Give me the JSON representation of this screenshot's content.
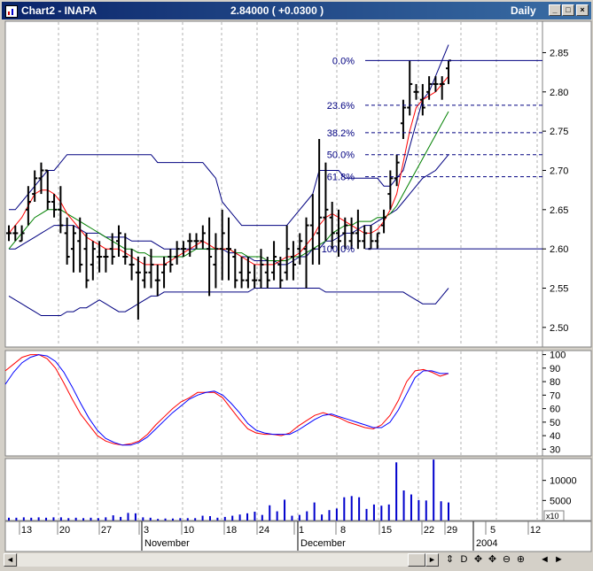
{
  "window": {
    "title": "Chart2 - INAPA",
    "price_text": "2.84000 ( +0.0300 )",
    "period": "Daily",
    "controls": {
      "minimize": "_",
      "maximize": "□",
      "close": "×"
    }
  },
  "chart_data": [
    {
      "type": "bar",
      "panel": "price",
      "description_kind": "OHLC bars with Bollinger Bands, moving averages and Fibonacci retracement",
      "y_ticks": [
        "2.85",
        "2.80",
        "2.75",
        "2.70",
        "2.65",
        "2.60",
        "2.55",
        "2.50"
      ],
      "ylim": [
        2.475,
        2.89
      ],
      "days": [
        {
          "o": 2.62,
          "h": 2.63,
          "l": 2.61,
          "c": 2.62
        },
        {
          "o": 2.62,
          "h": 2.63,
          "l": 2.61,
          "c": 2.62
        },
        {
          "o": 2.61,
          "h": 2.63,
          "l": 2.61,
          "c": 2.62
        },
        {
          "o": 2.65,
          "h": 2.68,
          "l": 2.63,
          "c": 2.66
        },
        {
          "o": 2.67,
          "h": 2.7,
          "l": 2.66,
          "c": 2.69
        },
        {
          "o": 2.69,
          "h": 2.71,
          "l": 2.67,
          "c": 2.7
        },
        {
          "o": 2.7,
          "h": 2.7,
          "l": 2.65,
          "c": 2.66
        },
        {
          "o": 2.66,
          "h": 2.67,
          "l": 2.64,
          "c": 2.65
        },
        {
          "o": 2.65,
          "h": 2.68,
          "l": 2.62,
          "c": 2.63
        },
        {
          "o": 2.62,
          "h": 2.64,
          "l": 2.58,
          "c": 2.59
        },
        {
          "o": 2.6,
          "h": 2.63,
          "l": 2.57,
          "c": 2.62
        },
        {
          "o": 2.61,
          "h": 2.64,
          "l": 2.57,
          "c": 2.58
        },
        {
          "o": 2.6,
          "h": 2.62,
          "l": 2.55,
          "c": 2.56
        },
        {
          "o": 2.58,
          "h": 2.61,
          "l": 2.56,
          "c": 2.6
        },
        {
          "o": 2.59,
          "h": 2.61,
          "l": 2.57,
          "c": 2.59
        },
        {
          "o": 2.59,
          "h": 2.6,
          "l": 2.57,
          "c": 2.59
        },
        {
          "o": 2.6,
          "h": 2.62,
          "l": 2.58,
          "c": 2.59
        },
        {
          "o": 2.61,
          "h": 2.63,
          "l": 2.59,
          "c": 2.62
        },
        {
          "o": 2.59,
          "h": 2.62,
          "l": 2.58,
          "c": 2.59
        },
        {
          "o": 2.58,
          "h": 2.6,
          "l": 2.56,
          "c": 2.58
        },
        {
          "o": 2.57,
          "h": 2.59,
          "l": 2.51,
          "c": 2.57
        },
        {
          "o": 2.56,
          "h": 2.59,
          "l": 2.55,
          "c": 2.57
        },
        {
          "o": 2.57,
          "h": 2.6,
          "l": 2.55,
          "c": 2.58
        },
        {
          "o": 2.56,
          "h": 2.58,
          "l": 2.54,
          "c": 2.56
        },
        {
          "o": 2.57,
          "h": 2.59,
          "l": 2.55,
          "c": 2.58
        },
        {
          "o": 2.59,
          "h": 2.6,
          "l": 2.57,
          "c": 2.58
        },
        {
          "o": 2.59,
          "h": 2.61,
          "l": 2.58,
          "c": 2.6
        },
        {
          "o": 2.6,
          "h": 2.61,
          "l": 2.59,
          "c": 2.6
        },
        {
          "o": 2.61,
          "h": 2.62,
          "l": 2.59,
          "c": 2.61
        },
        {
          "o": 2.61,
          "h": 2.62,
          "l": 2.6,
          "c": 2.61
        },
        {
          "o": 2.61,
          "h": 2.63,
          "l": 2.6,
          "c": 2.62
        },
        {
          "o": 2.6,
          "h": 2.64,
          "l": 2.54,
          "c": 2.59
        },
        {
          "o": 2.58,
          "h": 2.62,
          "l": 2.55,
          "c": 2.6
        },
        {
          "o": 2.6,
          "h": 2.65,
          "l": 2.56,
          "c": 2.62
        },
        {
          "o": 2.6,
          "h": 2.64,
          "l": 2.56,
          "c": 2.6
        },
        {
          "o": 2.59,
          "h": 2.6,
          "l": 2.55,
          "c": 2.56
        },
        {
          "o": 2.57,
          "h": 2.59,
          "l": 2.55,
          "c": 2.56
        },
        {
          "o": 2.56,
          "h": 2.59,
          "l": 2.55,
          "c": 2.57
        },
        {
          "o": 2.56,
          "h": 2.58,
          "l": 2.55,
          "c": 2.56
        },
        {
          "o": 2.56,
          "h": 2.6,
          "l": 2.55,
          "c": 2.58
        },
        {
          "o": 2.57,
          "h": 2.59,
          "l": 2.55,
          "c": 2.56
        },
        {
          "o": 2.57,
          "h": 2.61,
          "l": 2.56,
          "c": 2.59
        },
        {
          "o": 2.58,
          "h": 2.59,
          "l": 2.55,
          "c": 2.56
        },
        {
          "o": 2.57,
          "h": 2.63,
          "l": 2.56,
          "c": 2.6
        },
        {
          "o": 2.59,
          "h": 2.61,
          "l": 2.56,
          "c": 2.58
        },
        {
          "o": 2.6,
          "h": 2.62,
          "l": 2.58,
          "c": 2.61
        },
        {
          "o": 2.6,
          "h": 2.64,
          "l": 2.55,
          "c": 2.63
        },
        {
          "o": 2.63,
          "h": 2.67,
          "l": 2.58,
          "c": 2.6
        },
        {
          "o": 2.62,
          "h": 2.74,
          "l": 2.58,
          "c": 2.64
        },
        {
          "o": 2.64,
          "h": 2.71,
          "l": 2.61,
          "c": 2.65
        },
        {
          "o": 2.64,
          "h": 2.66,
          "l": 2.6,
          "c": 2.62
        },
        {
          "o": 2.62,
          "h": 2.65,
          "l": 2.59,
          "c": 2.61
        },
        {
          "o": 2.62,
          "h": 2.64,
          "l": 2.6,
          "c": 2.63
        },
        {
          "o": 2.61,
          "h": 2.64,
          "l": 2.6,
          "c": 2.62
        },
        {
          "o": 2.62,
          "h": 2.65,
          "l": 2.6,
          "c": 2.61
        },
        {
          "o": 2.61,
          "h": 2.63,
          "l": 2.6,
          "c": 2.62
        },
        {
          "o": 2.6,
          "h": 2.63,
          "l": 2.6,
          "c": 2.61
        },
        {
          "o": 2.61,
          "h": 2.62,
          "l": 2.6,
          "c": 2.62
        },
        {
          "o": 2.63,
          "h": 2.65,
          "l": 2.62,
          "c": 2.64
        },
        {
          "o": 2.67,
          "h": 2.7,
          "l": 2.65,
          "c": 2.69
        },
        {
          "o": 2.69,
          "h": 2.72,
          "l": 2.68,
          "c": 2.71
        },
        {
          "o": 2.76,
          "h": 2.79,
          "l": 2.74,
          "c": 2.78
        },
        {
          "o": 2.78,
          "h": 2.84,
          "l": 2.77,
          "c": 2.81
        },
        {
          "o": 2.8,
          "h": 2.81,
          "l": 2.79,
          "c": 2.8
        },
        {
          "o": 2.79,
          "h": 2.81,
          "l": 2.77,
          "c": 2.78
        },
        {
          "o": 2.8,
          "h": 2.82,
          "l": 2.79,
          "c": 2.81
        },
        {
          "o": 2.81,
          "h": 2.82,
          "l": 2.8,
          "c": 2.81
        },
        {
          "o": 2.81,
          "h": 2.82,
          "l": 2.79,
          "c": 2.81
        },
        {
          "o": 2.83,
          "h": 2.84,
          "l": 2.81,
          "c": 2.84
        }
      ],
      "bollinger_upper": [
        2.65,
        2.65,
        2.66,
        2.67,
        2.68,
        2.69,
        2.7,
        2.7,
        2.71,
        2.72,
        2.72,
        2.72,
        2.72,
        2.72,
        2.72,
        2.72,
        2.72,
        2.72,
        2.72,
        2.72,
        2.72,
        2.72,
        2.72,
        2.71,
        2.71,
        2.71,
        2.71,
        2.71,
        2.71,
        2.71,
        2.71,
        2.7,
        2.69,
        2.66,
        2.65,
        2.64,
        2.63,
        2.63,
        2.63,
        2.63,
        2.63,
        2.63,
        2.63,
        2.63,
        2.64,
        2.65,
        2.66,
        2.67,
        2.7,
        2.7,
        2.7,
        2.7,
        2.69,
        2.69,
        2.69,
        2.69,
        2.69,
        2.69,
        2.68,
        2.68,
        2.69,
        2.7,
        2.73,
        2.76,
        2.79,
        2.8,
        2.82,
        2.84,
        2.86
      ],
      "bollinger_middle": [
        2.6,
        2.6,
        2.605,
        2.61,
        2.615,
        2.62,
        2.625,
        2.63,
        2.63,
        2.63,
        2.63,
        2.625,
        2.62,
        2.62,
        2.62,
        2.615,
        2.615,
        2.615,
        2.615,
        2.61,
        2.61,
        2.61,
        2.61,
        2.605,
        2.6,
        2.6,
        2.6,
        2.6,
        2.6,
        2.6,
        2.6,
        2.6,
        2.6,
        2.6,
        2.595,
        2.595,
        2.59,
        2.59,
        2.585,
        2.585,
        2.585,
        2.585,
        2.58,
        2.58,
        2.585,
        2.59,
        2.59,
        2.6,
        2.6,
        2.61,
        2.61,
        2.615,
        2.62,
        2.62,
        2.625,
        2.63,
        2.63,
        2.635,
        2.64,
        2.645,
        2.65,
        2.66,
        2.67,
        2.68,
        2.69,
        2.695,
        2.7,
        2.71,
        2.72
      ],
      "bollinger_lower": [
        2.54,
        2.535,
        2.53,
        2.525,
        2.52,
        2.515,
        2.515,
        2.515,
        2.515,
        2.52,
        2.52,
        2.525,
        2.525,
        2.53,
        2.535,
        2.53,
        2.525,
        2.52,
        2.52,
        2.525,
        2.53,
        2.535,
        2.54,
        2.54,
        2.545,
        2.545,
        2.545,
        2.545,
        2.545,
        2.545,
        2.545,
        2.545,
        2.545,
        2.545,
        2.545,
        2.545,
        2.545,
        2.545,
        2.55,
        2.55,
        2.55,
        2.55,
        2.55,
        2.55,
        2.55,
        2.55,
        2.55,
        2.55,
        2.55,
        2.545,
        2.545,
        2.545,
        2.545,
        2.545,
        2.545,
        2.545,
        2.545,
        2.545,
        2.545,
        2.545,
        2.545,
        2.545,
        2.54,
        2.535,
        2.53,
        2.53,
        2.53,
        2.54,
        2.55
      ],
      "ma_red": [
        2.62,
        2.63,
        2.64,
        2.655,
        2.67,
        2.675,
        2.675,
        2.67,
        2.66,
        2.645,
        2.635,
        2.625,
        2.615,
        2.61,
        2.605,
        2.6,
        2.6,
        2.6,
        2.595,
        2.59,
        2.585,
        2.58,
        2.58,
        2.58,
        2.58,
        2.585,
        2.59,
        2.595,
        2.6,
        2.605,
        2.61,
        2.605,
        2.6,
        2.6,
        2.6,
        2.595,
        2.59,
        2.585,
        2.58,
        2.58,
        2.58,
        2.58,
        2.585,
        2.59,
        2.59,
        2.595,
        2.605,
        2.615,
        2.63,
        2.64,
        2.645,
        2.64,
        2.635,
        2.63,
        2.625,
        2.62,
        2.62,
        2.625,
        2.635,
        2.65,
        2.67,
        2.71,
        2.75,
        2.78,
        2.79,
        2.795,
        2.8,
        2.81,
        2.82
      ],
      "ma_green": [
        2.6,
        2.61,
        2.62,
        2.63,
        2.64,
        2.645,
        2.65,
        2.65,
        2.65,
        2.645,
        2.64,
        2.635,
        2.63,
        2.625,
        2.62,
        2.615,
        2.61,
        2.605,
        2.6,
        2.6,
        2.595,
        2.595,
        2.59,
        2.59,
        2.59,
        2.59,
        2.59,
        2.59,
        2.595,
        2.6,
        2.6,
        2.6,
        2.6,
        2.6,
        2.6,
        2.595,
        2.595,
        2.59,
        2.59,
        2.59,
        2.585,
        2.585,
        2.585,
        2.585,
        2.59,
        2.59,
        2.595,
        2.6,
        2.605,
        2.61,
        2.62,
        2.625,
        2.63,
        2.63,
        2.635,
        2.635,
        2.635,
        2.64,
        2.64,
        2.645,
        2.655,
        2.67,
        2.685,
        2.7,
        2.715,
        2.73,
        2.745,
        2.76,
        2.775
      ],
      "fibonacci": {
        "high": 2.84,
        "low": 2.6,
        "levels": [
          {
            "label": "0.0%",
            "value": 2.84
          },
          {
            "label": "23.6%",
            "value": 2.783
          },
          {
            "label": "38.2%",
            "value": 2.748
          },
          {
            "label": "50.0%",
            "value": 2.72
          },
          {
            "label": "61.8%",
            "value": 2.692
          },
          {
            "label": "100.0%",
            "value": 2.6
          }
        ]
      },
      "colors": {
        "bars": "#000000",
        "bollinger": "#000080",
        "ma_fast": "#ff0000",
        "ma_slow": "#008000",
        "fibonacci": "#000080",
        "fib_label": "#000080"
      }
    },
    {
      "type": "line",
      "panel": "stochastic",
      "y_ticks": [
        "100",
        "90",
        "80",
        "70",
        "60",
        "50",
        "40",
        "30"
      ],
      "ylim": [
        25,
        103
      ],
      "series": [
        {
          "color": "#ff0000",
          "values": [
            88,
            93,
            98,
            100,
            100,
            97,
            90,
            79,
            67,
            56,
            48,
            40,
            36,
            34,
            33,
            34,
            36,
            41,
            48,
            54,
            60,
            65,
            68,
            72,
            72,
            72,
            68,
            60,
            52,
            45,
            42,
            41,
            41,
            40,
            42,
            47,
            51,
            55,
            57,
            55,
            53,
            50,
            48,
            46,
            45,
            48,
            55,
            66,
            80,
            88,
            89,
            87,
            84,
            86
          ]
        },
        {
          "color": "#0000ff",
          "values": [
            78,
            87,
            94,
            98,
            100,
            99,
            95,
            87,
            76,
            64,
            53,
            44,
            38,
            35,
            33,
            33,
            35,
            39,
            45,
            51,
            57,
            62,
            67,
            70,
            72,
            73,
            70,
            64,
            57,
            49,
            44,
            42,
            41,
            41,
            41,
            44,
            48,
            52,
            55,
            56,
            54,
            52,
            50,
            48,
            46,
            46,
            50,
            59,
            71,
            83,
            88,
            88,
            86,
            86
          ]
        }
      ]
    },
    {
      "type": "bar",
      "panel": "volume",
      "y_ticks": [
        "10000",
        "5000"
      ],
      "multiplier_label": "x10",
      "ylim": [
        0,
        15000
      ],
      "values": [
        700,
        700,
        800,
        700,
        800,
        700,
        800,
        800,
        600,
        700,
        600,
        700,
        600,
        800,
        1300,
        900,
        1900,
        1800,
        800,
        700,
        400,
        500,
        500,
        600,
        600,
        600,
        1200,
        1100,
        700,
        900,
        1200,
        1500,
        1800,
        2200,
        1400,
        3800,
        2300,
        5200,
        1200,
        1400,
        2300,
        4500,
        1500,
        2600,
        3000,
        5800,
        6100,
        5800,
        2900,
        4000,
        3700,
        4000,
        14500,
        7500,
        6500,
        5100,
        5000,
        15200,
        4800,
        4500
      ],
      "color": "#0000cc"
    }
  ],
  "x_axis": {
    "day_labels": [
      "13",
      "20",
      "27",
      "3",
      "10",
      "18",
      "24",
      "1",
      "8",
      "15",
      "22",
      "29",
      "5",
      "12"
    ],
    "month_labels": [
      "November",
      "December",
      "2004"
    ]
  },
  "scrollbar": {
    "left_arrow": "◄",
    "right_arrow": "►",
    "tools": [
      "⇕",
      "D",
      "✥",
      "✥",
      "⊖",
      "⊕",
      "◄",
      "►"
    ]
  }
}
